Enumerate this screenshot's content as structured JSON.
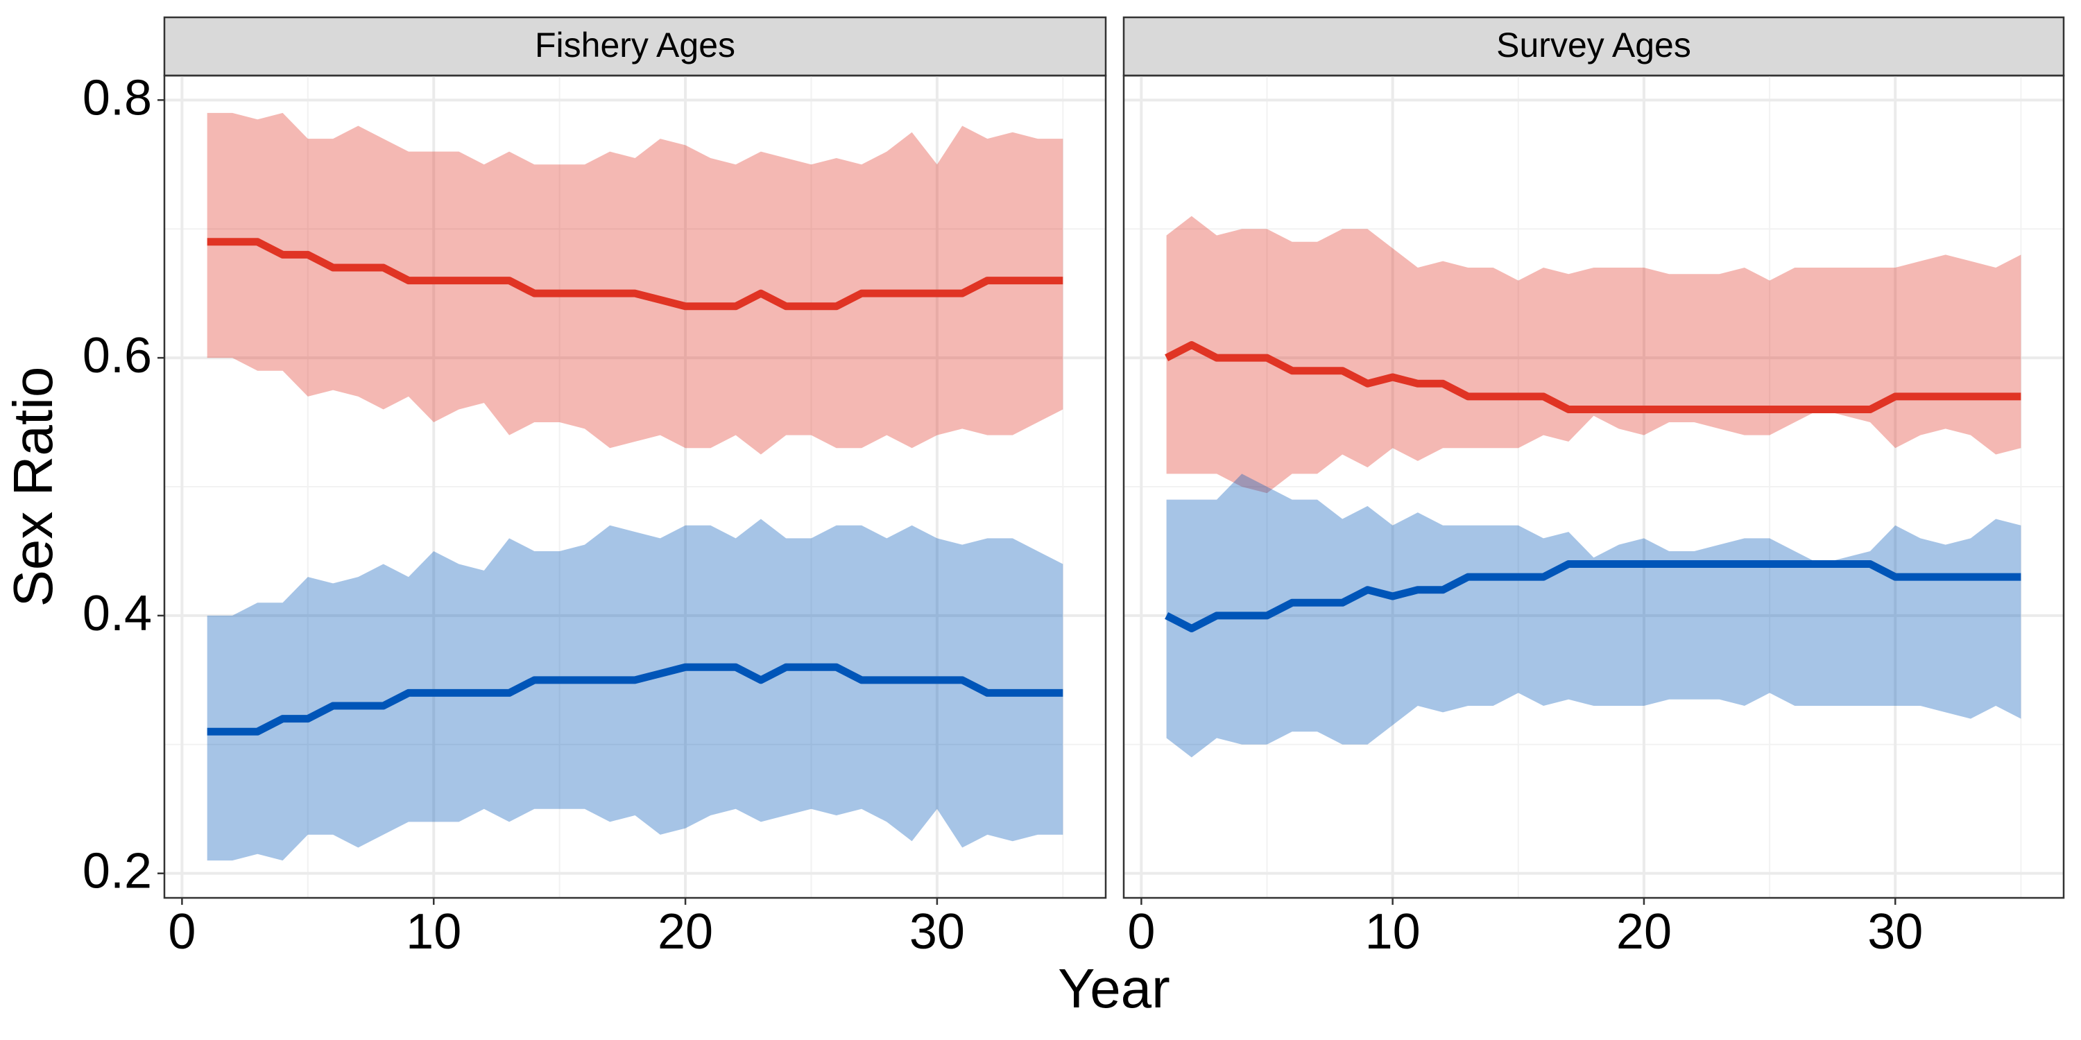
{
  "axis_labels": {
    "x": "Year",
    "y": "Sex Ratio"
  },
  "chart_data": [
    {
      "type": "ribbon-line",
      "title": "Fishery Ages",
      "x": [
        1,
        2,
        3,
        4,
        5,
        6,
        7,
        8,
        9,
        10,
        11,
        12,
        13,
        14,
        15,
        16,
        17,
        18,
        19,
        20,
        21,
        22,
        23,
        24,
        25,
        26,
        27,
        28,
        29,
        30,
        31,
        32,
        33,
        34,
        35
      ],
      "xlim": [
        -0.7,
        36.7
      ],
      "xticks": [
        0,
        10,
        20,
        30
      ],
      "x_minor_grid": [
        5,
        15,
        25,
        35
      ],
      "ylim": [
        0.181,
        0.819
      ],
      "yticks": [
        0.2,
        0.4,
        0.6,
        0.8
      ],
      "y_minor_grid": [
        0.3,
        0.5,
        0.7
      ],
      "y_tick_labels": true,
      "grid": true,
      "band_opacity": 0.35,
      "series": [
        {
          "color": "#e03424",
          "values": [
            0.69,
            0.69,
            0.69,
            0.68,
            0.68,
            0.67,
            0.67,
            0.67,
            0.66,
            0.66,
            0.66,
            0.66,
            0.66,
            0.65,
            0.65,
            0.65,
            0.65,
            0.65,
            0.645,
            0.64,
            0.64,
            0.64,
            0.65,
            0.64,
            0.64,
            0.64,
            0.65,
            0.65,
            0.65,
            0.65,
            0.65,
            0.66,
            0.66,
            0.66,
            0.66
          ],
          "upper": [
            0.79,
            0.79,
            0.785,
            0.79,
            0.77,
            0.77,
            0.78,
            0.77,
            0.76,
            0.76,
            0.76,
            0.75,
            0.76,
            0.75,
            0.75,
            0.75,
            0.76,
            0.755,
            0.77,
            0.765,
            0.755,
            0.75,
            0.76,
            0.755,
            0.75,
            0.755,
            0.75,
            0.76,
            0.775,
            0.75,
            0.78,
            0.77,
            0.775,
            0.77,
            0.77
          ],
          "lower": [
            0.6,
            0.6,
            0.59,
            0.59,
            0.57,
            0.575,
            0.57,
            0.56,
            0.57,
            0.55,
            0.56,
            0.565,
            0.54,
            0.55,
            0.55,
            0.545,
            0.53,
            0.535,
            0.54,
            0.53,
            0.53,
            0.54,
            0.525,
            0.54,
            0.54,
            0.53,
            0.53,
            0.54,
            0.53,
            0.54,
            0.545,
            0.54,
            0.54,
            0.55,
            0.56
          ]
        },
        {
          "color": "#0055b8",
          "values": [
            0.31,
            0.31,
            0.31,
            0.32,
            0.32,
            0.33,
            0.33,
            0.33,
            0.34,
            0.34,
            0.34,
            0.34,
            0.34,
            0.35,
            0.35,
            0.35,
            0.35,
            0.35,
            0.355,
            0.36,
            0.36,
            0.36,
            0.35,
            0.36,
            0.36,
            0.36,
            0.35,
            0.35,
            0.35,
            0.35,
            0.35,
            0.34,
            0.34,
            0.34,
            0.34
          ],
          "upper": [
            0.4,
            0.4,
            0.41,
            0.41,
            0.43,
            0.425,
            0.43,
            0.44,
            0.43,
            0.45,
            0.44,
            0.435,
            0.46,
            0.45,
            0.45,
            0.455,
            0.47,
            0.465,
            0.46,
            0.47,
            0.47,
            0.46,
            0.475,
            0.46,
            0.46,
            0.47,
            0.47,
            0.46,
            0.47,
            0.46,
            0.455,
            0.46,
            0.46,
            0.45,
            0.44
          ],
          "lower": [
            0.21,
            0.21,
            0.215,
            0.21,
            0.23,
            0.23,
            0.22,
            0.23,
            0.24,
            0.24,
            0.24,
            0.25,
            0.24,
            0.25,
            0.25,
            0.25,
            0.24,
            0.245,
            0.23,
            0.235,
            0.245,
            0.25,
            0.24,
            0.245,
            0.25,
            0.245,
            0.25,
            0.24,
            0.225,
            0.25,
            0.22,
            0.23,
            0.225,
            0.23,
            0.23
          ]
        }
      ]
    },
    {
      "type": "ribbon-line",
      "title": "Survey Ages",
      "x": [
        1,
        2,
        3,
        4,
        5,
        6,
        7,
        8,
        9,
        10,
        11,
        12,
        13,
        14,
        15,
        16,
        17,
        18,
        19,
        20,
        21,
        22,
        23,
        24,
        25,
        26,
        27,
        28,
        29,
        30,
        31,
        32,
        33,
        34,
        35
      ],
      "xlim": [
        -0.7,
        36.7
      ],
      "xticks": [
        0,
        10,
        20,
        30
      ],
      "x_minor_grid": [
        5,
        15,
        25,
        35
      ],
      "ylim": [
        0.181,
        0.819
      ],
      "yticks": [
        0.2,
        0.4,
        0.6,
        0.8
      ],
      "y_minor_grid": [
        0.3,
        0.5,
        0.7
      ],
      "y_tick_labels": false,
      "grid": true,
      "band_opacity": 0.35,
      "series": [
        {
          "color": "#e03424",
          "values": [
            0.6,
            0.61,
            0.6,
            0.6,
            0.6,
            0.59,
            0.59,
            0.59,
            0.58,
            0.585,
            0.58,
            0.58,
            0.57,
            0.57,
            0.57,
            0.57,
            0.56,
            0.56,
            0.56,
            0.56,
            0.56,
            0.56,
            0.56,
            0.56,
            0.56,
            0.56,
            0.56,
            0.56,
            0.56,
            0.57,
            0.57,
            0.57,
            0.57,
            0.57,
            0.57
          ],
          "upper": [
            0.695,
            0.71,
            0.695,
            0.7,
            0.7,
            0.69,
            0.69,
            0.7,
            0.7,
            0.685,
            0.67,
            0.675,
            0.67,
            0.67,
            0.66,
            0.67,
            0.665,
            0.67,
            0.67,
            0.67,
            0.665,
            0.665,
            0.665,
            0.67,
            0.66,
            0.67,
            0.67,
            0.67,
            0.67,
            0.67,
            0.675,
            0.68,
            0.675,
            0.67,
            0.68
          ],
          "lower": [
            0.51,
            0.51,
            0.51,
            0.5,
            0.495,
            0.51,
            0.51,
            0.525,
            0.515,
            0.53,
            0.52,
            0.53,
            0.53,
            0.53,
            0.53,
            0.54,
            0.535,
            0.555,
            0.545,
            0.54,
            0.55,
            0.55,
            0.545,
            0.54,
            0.54,
            0.55,
            0.56,
            0.555,
            0.55,
            0.53,
            0.54,
            0.545,
            0.54,
            0.525,
            0.53
          ]
        },
        {
          "color": "#0055b8",
          "values": [
            0.4,
            0.39,
            0.4,
            0.4,
            0.4,
            0.41,
            0.41,
            0.41,
            0.42,
            0.415,
            0.42,
            0.42,
            0.43,
            0.43,
            0.43,
            0.43,
            0.44,
            0.44,
            0.44,
            0.44,
            0.44,
            0.44,
            0.44,
            0.44,
            0.44,
            0.44,
            0.44,
            0.44,
            0.44,
            0.43,
            0.43,
            0.43,
            0.43,
            0.43,
            0.43
          ],
          "upper": [
            0.49,
            0.49,
            0.49,
            0.51,
            0.5,
            0.49,
            0.49,
            0.475,
            0.485,
            0.47,
            0.48,
            0.47,
            0.47,
            0.47,
            0.47,
            0.46,
            0.465,
            0.445,
            0.455,
            0.46,
            0.45,
            0.45,
            0.455,
            0.46,
            0.46,
            0.45,
            0.44,
            0.445,
            0.45,
            0.47,
            0.46,
            0.455,
            0.46,
            0.475,
            0.47
          ],
          "lower": [
            0.305,
            0.29,
            0.305,
            0.3,
            0.3,
            0.31,
            0.31,
            0.3,
            0.3,
            0.315,
            0.33,
            0.325,
            0.33,
            0.33,
            0.34,
            0.33,
            0.335,
            0.33,
            0.33,
            0.33,
            0.335,
            0.335,
            0.335,
            0.33,
            0.34,
            0.33,
            0.33,
            0.33,
            0.33,
            0.33,
            0.33,
            0.325,
            0.32,
            0.33,
            0.32
          ]
        }
      ]
    }
  ]
}
